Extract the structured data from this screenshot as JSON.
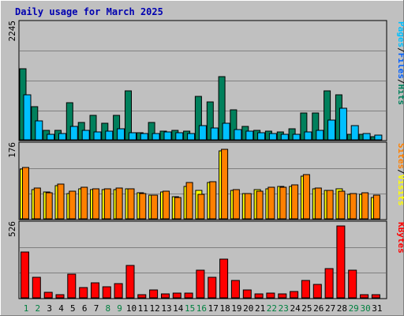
{
  "title": "Daily usage for March 2025",
  "colors": {
    "background": "#c0c0c0",
    "title": "#0000b0",
    "hits": "#00805c",
    "files": "#00c0ff",
    "pages": "#00c0ff",
    "visits": "#ffff00",
    "sites": "#ff8000",
    "kbytes": "#ff0000",
    "weekend_label": "#008040",
    "weekday_label": "#000000"
  },
  "chart_data": [
    {
      "type": "bar",
      "ylabel": "Pages / Files / Hits",
      "ymax_label": "2245",
      "ylim": [
        0,
        2245
      ],
      "categories": [
        "1",
        "2",
        "3",
        "4",
        "5",
        "6",
        "7",
        "8",
        "9",
        "10",
        "11",
        "12",
        "13",
        "14",
        "15",
        "16",
        "17",
        "18",
        "19",
        "20",
        "21",
        "22",
        "23",
        "24",
        "25",
        "26",
        "27",
        "28",
        "29",
        "30",
        "31"
      ],
      "legend": [
        {
          "text": "Pages",
          "color": "#00c0ff"
        },
        {
          "text": "/",
          "color": "#000000"
        },
        {
          "text": "Files",
          "color": "#0060ff"
        },
        {
          "text": "/",
          "color": "#000000"
        },
        {
          "text": "Hits",
          "color": "#00805c"
        }
      ],
      "series": [
        {
          "name": "Hits",
          "color": "#00805c",
          "values": [
            1390,
            640,
            190,
            180,
            720,
            340,
            470,
            330,
            470,
            960,
            140,
            340,
            170,
            190,
            170,
            850,
            740,
            1230,
            590,
            260,
            180,
            170,
            160,
            210,
            530,
            520,
            960,
            870,
            100,
            100,
            60
          ]
        },
        {
          "name": "Files",
          "color": "#00c0ff",
          "values": [
            870,
            370,
            110,
            120,
            260,
            180,
            160,
            170,
            210,
            140,
            120,
            120,
            160,
            140,
            130,
            270,
            230,
            330,
            200,
            170,
            140,
            120,
            110,
            110,
            160,
            190,
            380,
            610,
            280,
            120,
            90
          ]
        },
        {
          "name": "Pages",
          "color": "#00c0ff",
          "values": [
            0,
            0,
            0,
            0,
            0,
            0,
            0,
            0,
            0,
            0,
            0,
            0,
            0,
            0,
            0,
            0,
            0,
            0,
            0,
            0,
            0,
            0,
            0,
            0,
            0,
            0,
            0,
            0,
            0,
            0,
            0
          ]
        }
      ]
    },
    {
      "type": "bar",
      "ylabel": "Sites / Visits",
      "ymax_label": "176",
      "ylim": [
        0,
        176
      ],
      "categories": [
        "1",
        "2",
        "3",
        "4",
        "5",
        "6",
        "7",
        "8",
        "9",
        "10",
        "11",
        "12",
        "13",
        "14",
        "15",
        "16",
        "17",
        "18",
        "19",
        "20",
        "21",
        "22",
        "23",
        "24",
        "25",
        "26",
        "27",
        "28",
        "29",
        "30",
        "31"
      ],
      "legend": [
        {
          "text": "Sites",
          "color": "#ff8000"
        },
        {
          "text": "/",
          "color": "#000000"
        },
        {
          "text": "Visits",
          "color": "#ffff00"
        }
      ],
      "series": [
        {
          "name": "Visits",
          "color": "#ffff00",
          "values": [
            120,
            70,
            65,
            80,
            62,
            72,
            70,
            70,
            70,
            72,
            64,
            58,
            65,
            53,
            78,
            68,
            88,
            165,
            68,
            62,
            70,
            72,
            78,
            78,
            104,
            72,
            68,
            72,
            60,
            60,
            52
          ]
        },
        {
          "name": "Sites",
          "color": "#ff8000",
          "values": [
            124,
            74,
            64,
            84,
            66,
            76,
            72,
            72,
            74,
            72,
            62,
            58,
            66,
            52,
            88,
            60,
            90,
            168,
            70,
            62,
            66,
            76,
            76,
            82,
            108,
            74,
            68,
            66,
            62,
            64,
            58
          ]
        }
      ]
    },
    {
      "type": "bar",
      "ylabel": "KBytes",
      "ymax_label": "526",
      "ylim": [
        0,
        526
      ],
      "categories": [
        "1",
        "2",
        "3",
        "4",
        "5",
        "6",
        "7",
        "8",
        "9",
        "10",
        "11",
        "12",
        "13",
        "14",
        "15",
        "16",
        "17",
        "18",
        "19",
        "20",
        "21",
        "22",
        "23",
        "24",
        "25",
        "26",
        "27",
        "28",
        "29",
        "30",
        "31"
      ],
      "legend": [
        {
          "text": "KBytes",
          "color": "#ff0000"
        }
      ],
      "series": [
        {
          "name": "KBytes",
          "color": "#ff0000",
          "values": [
            330,
            150,
            40,
            25,
            170,
            75,
            110,
            80,
            105,
            235,
            25,
            60,
            30,
            35,
            35,
            200,
            150,
            280,
            125,
            55,
            28,
            35,
            30,
            45,
            125,
            100,
            210,
            520,
            200,
            25,
            25
          ]
        }
      ]
    }
  ],
  "day_labels": [
    {
      "text": "1",
      "weekend": true
    },
    {
      "text": "2",
      "weekend": true
    },
    {
      "text": "3",
      "weekend": false
    },
    {
      "text": "4",
      "weekend": false
    },
    {
      "text": "5",
      "weekend": false
    },
    {
      "text": "6",
      "weekend": false
    },
    {
      "text": "7",
      "weekend": false
    },
    {
      "text": "8",
      "weekend": true
    },
    {
      "text": "9",
      "weekend": true
    },
    {
      "text": "10",
      "weekend": false
    },
    {
      "text": "11",
      "weekend": false
    },
    {
      "text": "12",
      "weekend": false
    },
    {
      "text": "13",
      "weekend": false
    },
    {
      "text": "14",
      "weekend": false
    },
    {
      "text": "15",
      "weekend": true
    },
    {
      "text": "16",
      "weekend": true
    },
    {
      "text": "17",
      "weekend": false
    },
    {
      "text": "18",
      "weekend": false
    },
    {
      "text": "19",
      "weekend": false
    },
    {
      "text": "20",
      "weekend": false
    },
    {
      "text": "21",
      "weekend": false
    },
    {
      "text": "22",
      "weekend": true
    },
    {
      "text": "23",
      "weekend": true
    },
    {
      "text": "24",
      "weekend": false
    },
    {
      "text": "25",
      "weekend": false
    },
    {
      "text": "26",
      "weekend": false
    },
    {
      "text": "27",
      "weekend": false
    },
    {
      "text": "28",
      "weekend": false
    },
    {
      "text": "29",
      "weekend": true
    },
    {
      "text": "30",
      "weekend": true
    },
    {
      "text": "31",
      "weekend": false
    }
  ]
}
